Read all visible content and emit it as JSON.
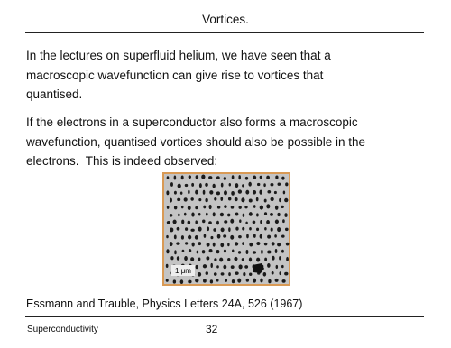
{
  "header": {
    "title": "Vortices."
  },
  "paragraphs": [
    [
      "In the lectures on superfluid helium, we have seen that a",
      "macroscopic wavefunction can give rise to vortices that",
      "quantised."
    ],
    [
      "If the electrons in a superconductor also forms a macroscopic",
      "wavefunction, quantised vortices should also be possible in the",
      "electrons.  This is indeed observed:"
    ]
  ],
  "image": {
    "scale_label": "1 μm"
  },
  "citation": "Essmann and Trauble, Physics Letters 24A, 526 (1967)",
  "footer": {
    "left": "Superconductivity",
    "page": "32"
  }
}
